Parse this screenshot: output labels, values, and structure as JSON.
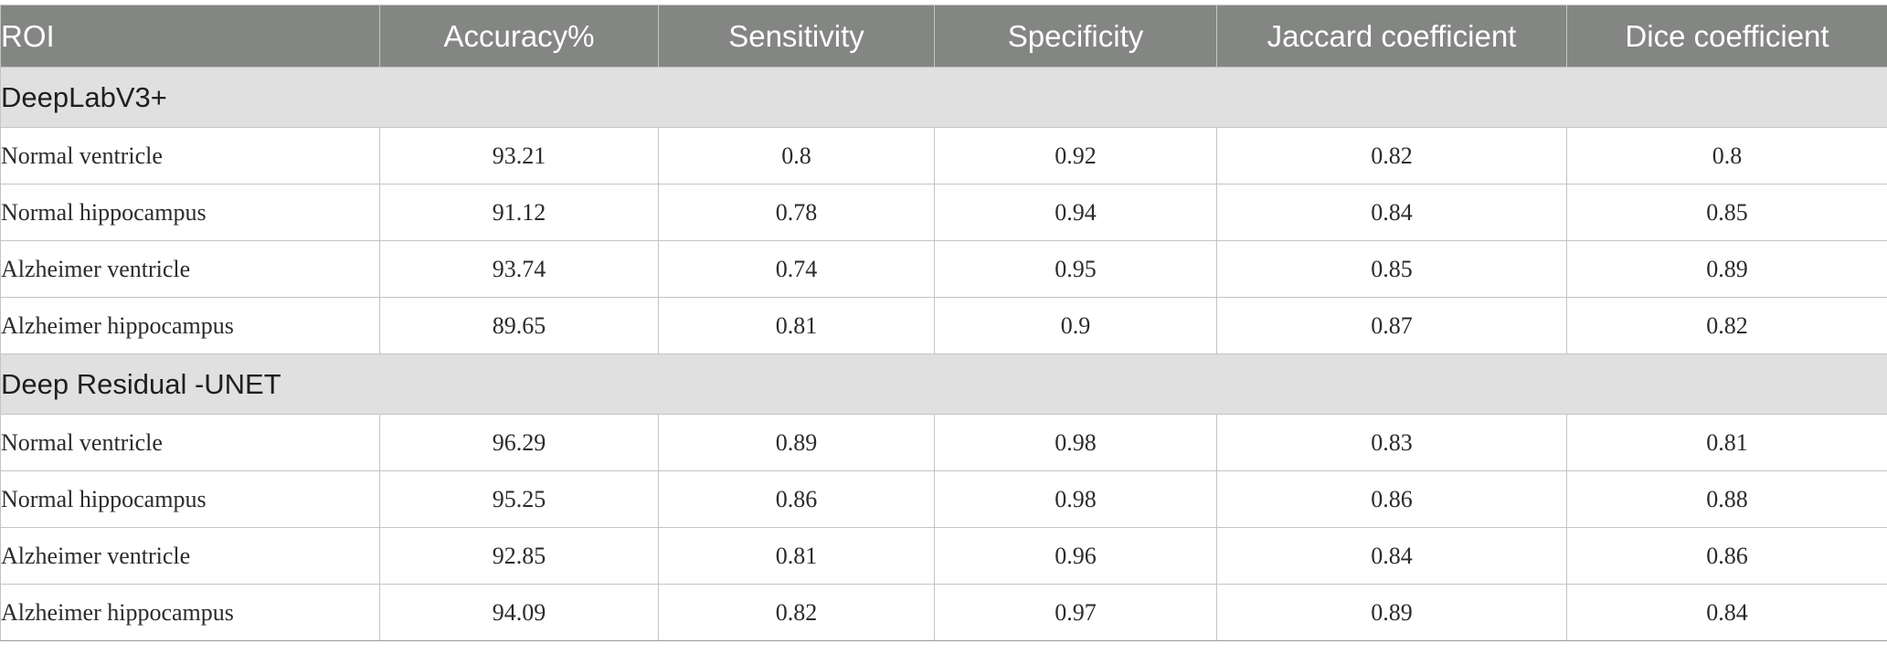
{
  "table": {
    "columns": [
      "ROI",
      "Accuracy%",
      "Sensitivity",
      "Specificity",
      "Jaccard coefficient",
      "Dice coefficient"
    ],
    "groups": [
      {
        "name": "DeepLabV3+",
        "rows": [
          [
            "Normal ventricle",
            "93.21",
            "0.8",
            "0.92",
            "0.82",
            "0.8"
          ],
          [
            "Normal hippocampus",
            "91.12",
            "0.78",
            "0.94",
            "0.84",
            "0.85"
          ],
          [
            "Alzheimer ventricle",
            "93.74",
            "0.74",
            "0.95",
            "0.85",
            "0.89"
          ],
          [
            "Alzheimer hippocampus",
            "89.65",
            "0.81",
            "0.9",
            "0.87",
            "0.82"
          ]
        ]
      },
      {
        "name": "Deep Residual -UNET",
        "rows": [
          [
            "Normal ventricle",
            "96.29",
            "0.89",
            "0.98",
            "0.83",
            "0.81"
          ],
          [
            "Normal hippocampus",
            "95.25",
            "0.86",
            "0.98",
            "0.86",
            "0.88"
          ],
          [
            "Alzheimer ventricle",
            "92.85",
            "0.81",
            "0.96",
            "0.84",
            "0.86"
          ],
          [
            "Alzheimer hippocampus",
            "94.09",
            "0.82",
            "0.97",
            "0.89",
            "0.84"
          ]
        ]
      }
    ]
  },
  "colors": {
    "header_background": "#848684",
    "header_text": "#ffffff",
    "group_background": "#e1e0e0",
    "grid_lines": "#c4c4c4"
  }
}
